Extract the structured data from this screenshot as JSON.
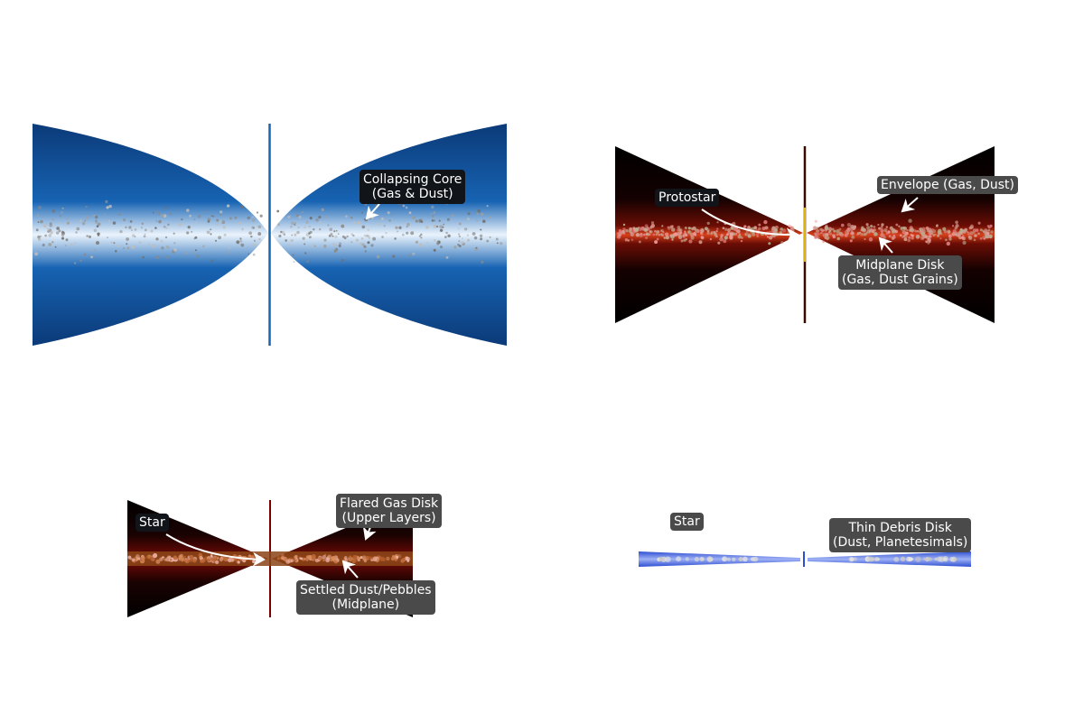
{
  "panels": [
    {
      "id": "collapsing-core",
      "colors": {
        "edge": "#0d3d7a",
        "mid": "#1565b0",
        "center": "#e8f2fb",
        "axis": "#1565b0"
      },
      "labels": [
        {
          "id": "core",
          "text": "Collapsing Core\n(Gas & Dust)"
        }
      ]
    },
    {
      "id": "protostar",
      "colors": {
        "edge": "#000000",
        "mid": "#5a0a04",
        "center": "#e8451f",
        "axis": "#d6a400"
      },
      "labels": [
        {
          "id": "protostar",
          "text": "Protostar"
        },
        {
          "id": "envelope",
          "text": "Envelope (Gas, Dust)"
        },
        {
          "id": "midplane",
          "text": "Midplane Disk\n(Gas, Dust Grains)"
        }
      ]
    },
    {
      "id": "flared-disk",
      "colors": {
        "edge": "#000000",
        "mid": "#4a0603",
        "center": "#a04a20",
        "axis": "#7a0000"
      },
      "labels": [
        {
          "id": "star",
          "text": "Star"
        },
        {
          "id": "flared",
          "text": "Flared Gas Disk\n(Upper Layers)"
        },
        {
          "id": "settled",
          "text": "Settled Dust/Pebbles\n(Midplane)"
        }
      ]
    },
    {
      "id": "debris-disk",
      "colors": {
        "edge": "#3a56d6",
        "mid": "#6f86ea",
        "center": "#dfe6ff",
        "axis": "#3a56d6"
      },
      "labels": [
        {
          "id": "star2",
          "text": "Star"
        },
        {
          "id": "debris",
          "text": "Thin Debris Disk\n(Dust, Planetesimals)"
        }
      ]
    }
  ]
}
